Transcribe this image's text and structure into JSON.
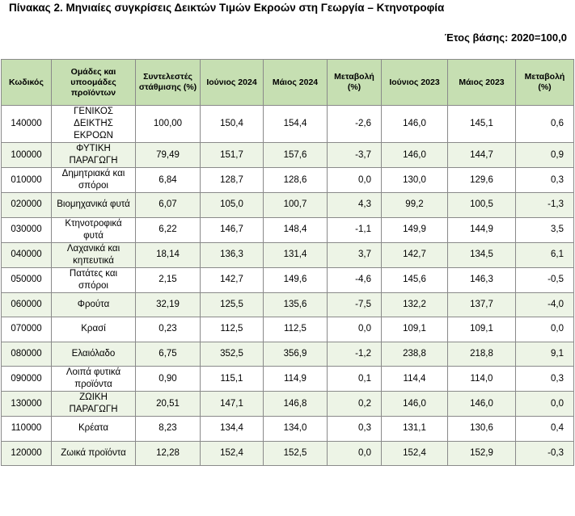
{
  "title": "Πίνακας 2. Μηνιαίες συγκρίσεις Δεικτών Τιμών Εκροών στη Γεωργία – Κτηνοτροφία",
  "base_year": "Έτος βάσης: 2020=100,0",
  "table": {
    "headers": [
      "Κωδικός",
      "Ομάδες και υποομάδες προϊόντων",
      "Συντελεστές στάθμισης (%)",
      "Ιούνιος 2024",
      "Μάιος 2024",
      "Μεταβολή (%)",
      "Ιούνιος 2023",
      "Μάιος 2023",
      "Μεταβολή (%)"
    ],
    "rows": [
      [
        "140000",
        "ΓΕΝΙΚΟΣ ΔΕΙΚΤΗΣ ΕΚΡΟΩΝ",
        "100,00",
        "150,4",
        "154,4",
        "-2,6",
        "146,0",
        "145,1",
        "0,6"
      ],
      [
        "100000",
        "ΦΥΤΙΚΗ ΠΑΡΑΓΩΓΗ",
        "79,49",
        "151,7",
        "157,6",
        "-3,7",
        "146,0",
        "144,7",
        "0,9"
      ],
      [
        "010000",
        "Δημητριακά και σπόροι",
        "6,84",
        "128,7",
        "128,6",
        "0,0",
        "130,0",
        "129,6",
        "0,3"
      ],
      [
        "020000",
        "Βιομηχανικά φυτά",
        "6,07",
        "105,0",
        "100,7",
        "4,3",
        "99,2",
        "100,5",
        "-1,3"
      ],
      [
        "030000",
        "Κτηνοτροφικά φυτά",
        "6,22",
        "146,7",
        "148,4",
        "-1,1",
        "149,9",
        "144,9",
        "3,5"
      ],
      [
        "040000",
        "Λαχανικά και κηπευτικά",
        "18,14",
        "136,3",
        "131,4",
        "3,7",
        "142,7",
        "134,5",
        "6,1"
      ],
      [
        "050000",
        "Πατάτες και σπόροι",
        "2,15",
        "142,7",
        "149,6",
        "-4,6",
        "145,6",
        "146,3",
        "-0,5"
      ],
      [
        "060000",
        "Φρούτα",
        "32,19",
        "125,5",
        "135,6",
        "-7,5",
        "132,2",
        "137,7",
        "-4,0"
      ],
      [
        "070000",
        "Κρασί",
        "0,23",
        "112,5",
        "112,5",
        "0,0",
        "109,1",
        "109,1",
        "0,0"
      ],
      [
        "080000",
        "Ελαιόλαδο",
        "6,75",
        "352,5",
        "356,9",
        "-1,2",
        "238,8",
        "218,8",
        "9,1"
      ],
      [
        "090000",
        "Λοιπά φυτικά προϊόντα",
        "0,90",
        "115,1",
        "114,9",
        "0,1",
        "114,4",
        "114,0",
        "0,3"
      ],
      [
        "130000",
        "ΖΩΙΚΗ ΠΑΡΑΓΩΓΗ",
        "20,51",
        "147,1",
        "146,8",
        "0,2",
        "146,0",
        "146,0",
        "0,0"
      ],
      [
        "110000",
        "Κρέατα",
        "8,23",
        "134,4",
        "134,0",
        "0,3",
        "131,1",
        "130,6",
        "0,4"
      ],
      [
        "120000",
        "Ζωικά προϊόντα",
        "12,28",
        "152,4",
        "152,5",
        "0,0",
        "152,4",
        "152,9",
        "-0,3"
      ]
    ]
  }
}
